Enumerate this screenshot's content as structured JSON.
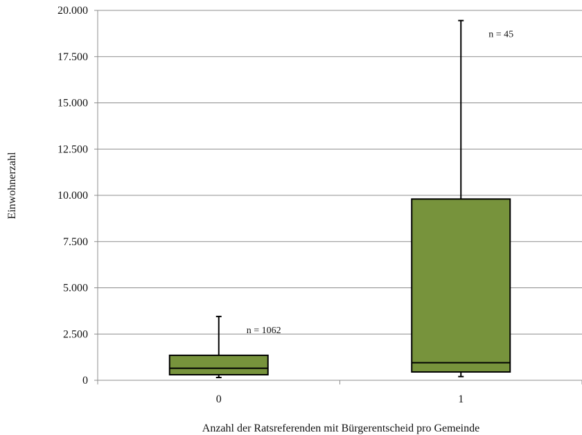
{
  "chart_data": {
    "type": "boxplot",
    "title": "",
    "xlabel": "Anzahl der Ratsreferenden mit Bürgerentscheid pro Gemeinde",
    "ylabel": "Einwohnerzahl",
    "ylim": [
      0,
      20000
    ],
    "yticks": [
      0,
      2500,
      5000,
      7500,
      10000,
      12500,
      15000,
      17500,
      20000
    ],
    "ytick_labels": [
      "0",
      "2.500",
      "5.000",
      "7.500",
      "10.000",
      "12.500",
      "15.000",
      "17.500",
      "20.000"
    ],
    "grid": "horizontal",
    "categories": [
      "0",
      "1"
    ],
    "boxes": [
      {
        "category": "0",
        "min": 150,
        "q1": 300,
        "median": 650,
        "q3": 1350,
        "max": 3450,
        "annotation": "n = 1062"
      },
      {
        "category": "1",
        "min": 200,
        "q1": 450,
        "median": 950,
        "q3": 9800,
        "max": 19450,
        "annotation": "n = 45"
      }
    ],
    "box_color": "#77933c"
  }
}
